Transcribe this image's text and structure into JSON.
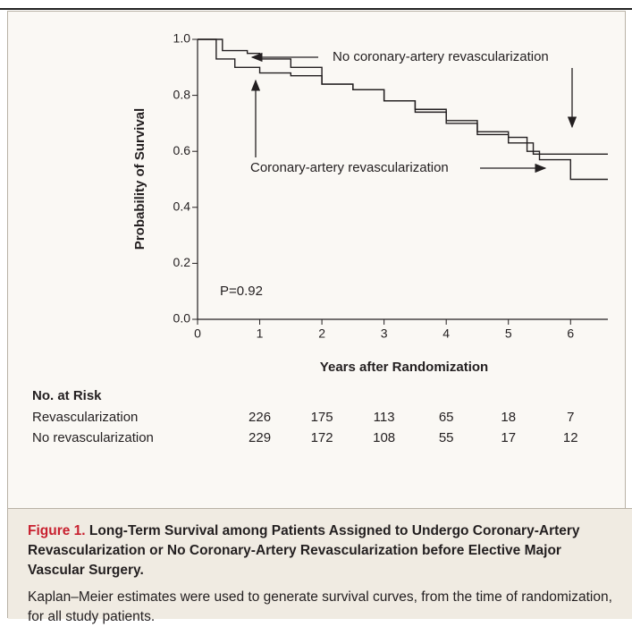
{
  "chart_data": {
    "type": "step",
    "x_label": "Years after Randomization",
    "y_label": "Probability of Survival",
    "xlim": [
      0,
      6.6
    ],
    "ylim": [
      0,
      1.0
    ],
    "xticks": [
      0,
      1,
      2,
      3,
      4,
      5,
      6
    ],
    "yticks": [
      {
        "value": 0,
        "label": "0.0"
      },
      {
        "value": 0.2,
        "label": "0.2"
      },
      {
        "value": 0.4,
        "label": "0.4"
      },
      {
        "value": 0.6,
        "label": "0.6"
      },
      {
        "value": 0.8,
        "label": "0.8"
      },
      {
        "value": 1,
        "label": "1.0"
      }
    ],
    "series": [
      {
        "name": "No coronary-artery revascularization",
        "color": "#231f20",
        "x": [
          0,
          0.4,
          0.8,
          1.0,
          1.5,
          2.0,
          2.5,
          3.0,
          3.5,
          4.0,
          4.5,
          5.0,
          5.3,
          5.4,
          6.6
        ],
        "values": [
          1.0,
          0.96,
          0.95,
          0.93,
          0.9,
          0.84,
          0.82,
          0.78,
          0.74,
          0.7,
          0.66,
          0.65,
          0.63,
          0.59,
          0.59
        ]
      },
      {
        "name": "Coronary-artery revascularization",
        "color": "#231f20",
        "x": [
          0,
          0.3,
          0.6,
          1.0,
          1.5,
          2.0,
          2.5,
          3.0,
          3.5,
          4.0,
          4.5,
          5.0,
          5.3,
          5.5,
          6.0,
          6.6
        ],
        "values": [
          1.0,
          0.93,
          0.9,
          0.88,
          0.87,
          0.84,
          0.82,
          0.78,
          0.75,
          0.71,
          0.67,
          0.63,
          0.6,
          0.57,
          0.5,
          0.5
        ]
      }
    ],
    "annotation": "P=0.92",
    "at_risk": {
      "title": "No. at Risk",
      "rows": [
        {
          "label": "Revascularization",
          "values": [
            226,
            175,
            113,
            65,
            18,
            7
          ]
        },
        {
          "label": "No revascularization",
          "values": [
            229,
            172,
            108,
            55,
            17,
            12
          ]
        }
      ]
    },
    "caption": {
      "label": "Figure 1.",
      "title": "Long-Term Survival among Patients Assigned to Undergo Coronary-Artery Revascularization or No Coronary-Artery Revascularization before Elective Major Vascular Surgery.",
      "text": "Kaplan–Meier estimates were used to generate survival curves, from the time of randomization, for all study patients."
    }
  }
}
